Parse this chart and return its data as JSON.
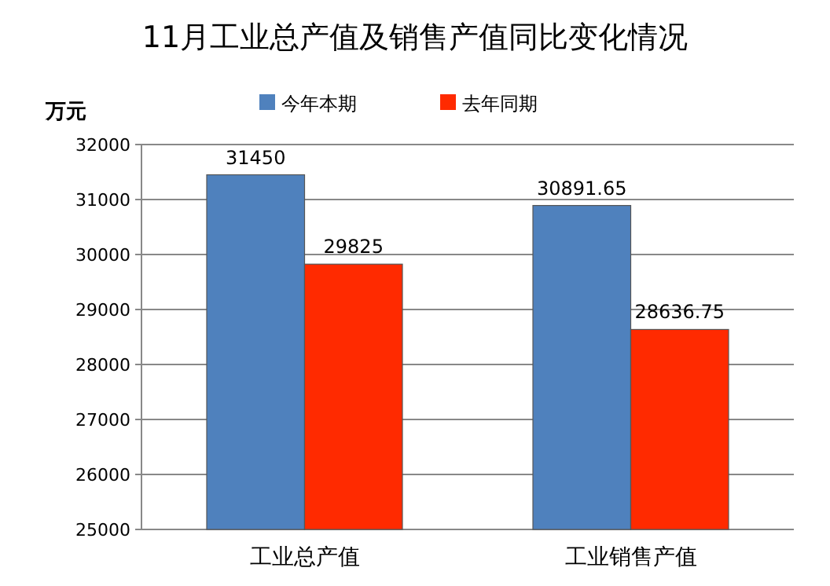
{
  "chart_data": {
    "type": "bar",
    "title": "11月工业总产值及销售产值同比变化情况",
    "ylabel": "万元",
    "categories": [
      "工业总产值",
      "工业销售产值"
    ],
    "series": [
      {
        "name": "今年本期",
        "color": "#4f81bd",
        "values": [
          31450,
          30891.65
        ]
      },
      {
        "name": "去年同期",
        "color": "#ff2a00",
        "values": [
          29825,
          28636.75
        ]
      }
    ],
    "ylim": [
      25000,
      32000
    ],
    "yticks": [
      25000,
      26000,
      27000,
      28000,
      29000,
      30000,
      31000,
      32000
    ],
    "grid": "y",
    "legend": "top",
    "data_labels": true
  }
}
